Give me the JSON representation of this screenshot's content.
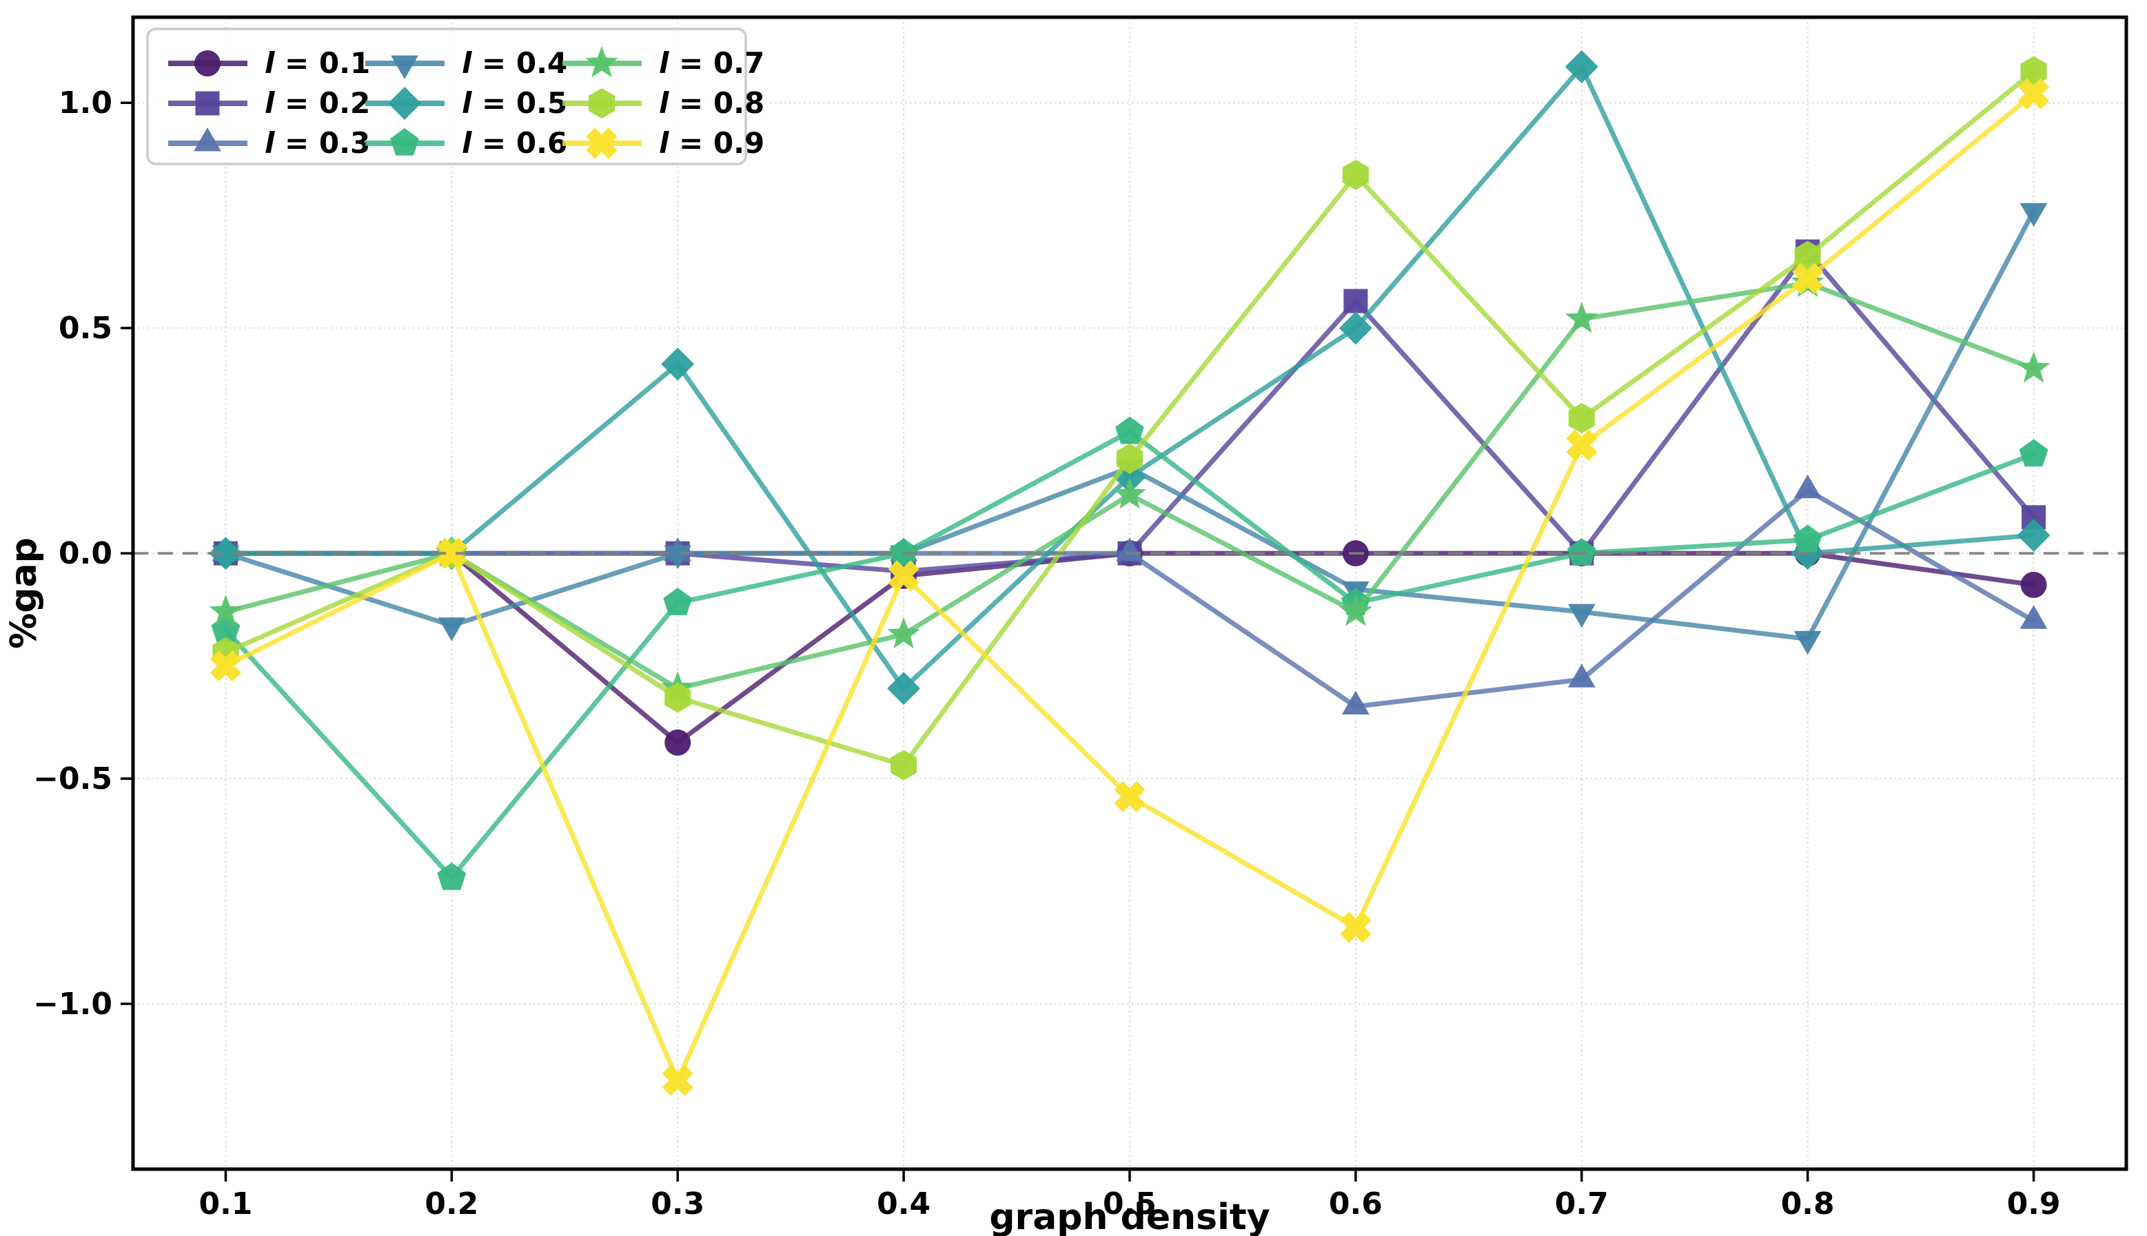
{
  "figure": {
    "background": "#ffffff"
  },
  "chart_data": {
    "type": "line",
    "title": "",
    "xlabel": "graph density",
    "ylabel": "%gap",
    "x": [
      0.1,
      0.2,
      0.3,
      0.4,
      0.5,
      0.6,
      0.7,
      0.8,
      0.9
    ],
    "x_tick_labels": [
      "0.1",
      "0.2",
      "0.3",
      "0.4",
      "0.5",
      "0.6",
      "0.7",
      "0.8",
      "0.9"
    ],
    "y_ticks": [
      {
        "value": 1.0,
        "label": "1.0"
      },
      {
        "value": 0.5,
        "label": "0.5"
      },
      {
        "value": 0.0,
        "label": "0.0"
      },
      {
        "value": -0.5,
        "label": "−0.5"
      },
      {
        "value": -1.0,
        "label": "−1.0"
      }
    ],
    "xlim": [
      0.059,
      0.941
    ],
    "ylim": [
      -1.367,
      1.19
    ],
    "grid": true,
    "grid_color": "#dcdcdc",
    "zero_line": {
      "style": "dashed",
      "color": "#808080"
    },
    "legend": {
      "position": "upper-left",
      "columns": 3,
      "fill_order": "column-major"
    },
    "series": [
      {
        "var": "l",
        "rest": " = 0.1",
        "marker": "circle",
        "color": "#4c1d6f",
        "values": [
          0.0,
          0.0,
          -0.42,
          -0.05,
          0.0,
          0.0,
          0.0,
          0.0,
          -0.07
        ]
      },
      {
        "var": "l",
        "rest": " = 0.2",
        "marker": "square",
        "color": "#55449b",
        "values": [
          0.0,
          0.0,
          0.0,
          -0.04,
          0.0,
          0.56,
          0.0,
          0.67,
          0.08
        ]
      },
      {
        "var": "l",
        "rest": " = 0.3",
        "marker": "triangle-up",
        "color": "#5673ad",
        "values": [
          0.0,
          0.0,
          0.0,
          0.0,
          0.0,
          -0.34,
          -0.28,
          0.14,
          -0.15
        ]
      },
      {
        "var": "l",
        "rest": " = 0.4",
        "marker": "triangle-down",
        "color": "#4484a8",
        "values": [
          0.0,
          -0.16,
          0.0,
          0.0,
          0.19,
          -0.08,
          -0.13,
          -0.19,
          0.76
        ]
      },
      {
        "var": "l",
        "rest": " = 0.5",
        "marker": "diamond",
        "color": "#2d9f9e",
        "values": [
          0.0,
          0.0,
          0.42,
          -0.3,
          0.17,
          0.5,
          1.08,
          0.0,
          0.04
        ]
      },
      {
        "var": "l",
        "rest": " = 0.6",
        "marker": "pentagon",
        "color": "#36b883",
        "values": [
          -0.17,
          -0.72,
          -0.11,
          0.0,
          0.27,
          -0.11,
          0.0,
          0.03,
          0.22
        ]
      },
      {
        "var": "l",
        "rest": " = 0.7",
        "marker": "star",
        "color": "#57c26a",
        "values": [
          -0.13,
          0.0,
          -0.3,
          -0.18,
          0.13,
          -0.13,
          0.52,
          0.6,
          0.41
        ]
      },
      {
        "var": "l",
        "rest": " = 0.8",
        "marker": "hexagon",
        "color": "#a5d938",
        "values": [
          -0.22,
          0.0,
          -0.32,
          -0.47,
          0.21,
          0.84,
          0.3,
          0.66,
          1.07
        ]
      },
      {
        "var": "l",
        "rest": " = 0.9",
        "marker": "x",
        "color": "#fbe12a",
        "values": [
          -0.25,
          0.0,
          -1.17,
          -0.05,
          -0.54,
          -0.83,
          0.24,
          0.61,
          1.02
        ]
      }
    ]
  }
}
